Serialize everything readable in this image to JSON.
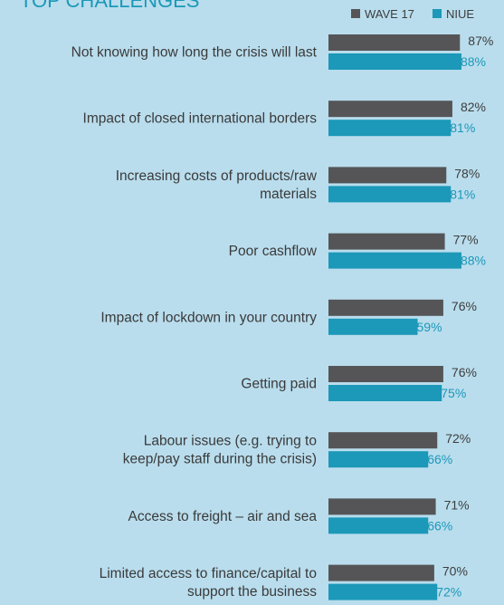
{
  "chart_data": {
    "type": "bar",
    "orientation": "horizontal",
    "title": "TOP CHALLENGES",
    "categories": [
      [
        "Not knowing how long the crisis will last"
      ],
      [
        "Impact of closed international borders"
      ],
      [
        "Increasing costs of products/raw",
        "materials"
      ],
      [
        "Poor cashflow"
      ],
      [
        "Impact of lockdown in your country"
      ],
      [
        "Getting paid"
      ],
      [
        "Labour issues  (e.g. trying to",
        "keep/pay staff during the crisis)"
      ],
      [
        "Access to freight – air and sea"
      ],
      [
        "Limited access to finance/capital  to",
        "support the business"
      ]
    ],
    "series": [
      {
        "name": "WAVE 17",
        "color": "#555557",
        "values": [
          87,
          82,
          78,
          77,
          76,
          76,
          72,
          71,
          70
        ],
        "labels": [
          "87%",
          "82%",
          "78%",
          "77%",
          "76%",
          "76%",
          "72%",
          "71%",
          "70%"
        ]
      },
      {
        "name": "NIUE",
        "color": "#1c98b8",
        "values": [
          88,
          81,
          81,
          88,
          59,
          75,
          66,
          66,
          72
        ],
        "labels": [
          "88%",
          "81%",
          "81%",
          "88%",
          "59%",
          "75%",
          "66%",
          "66%",
          "72%"
        ]
      }
    ],
    "legend": "top-right",
    "grid": false
  }
}
